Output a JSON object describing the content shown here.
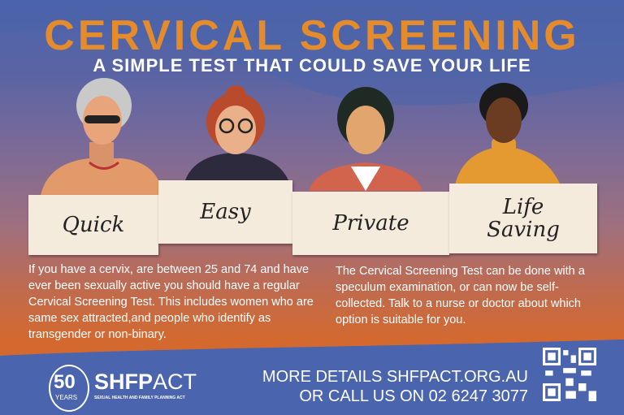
{
  "title": "CERVICAL SCREENING",
  "subtitle": "A SIMPLE TEST THAT COULD SAVE YOUR LIFE",
  "signs": [
    {
      "label": "Quick"
    },
    {
      "label": "Easy"
    },
    {
      "label": "Private"
    },
    {
      "label": "Life Saving"
    }
  ],
  "body_left": "If you have a cervix, are between 25 and 74 and have ever been sexually active you should have a regular Cervical Screening Test. This includes women who are same sex attracted,and people who identify as transgender or non-binary.",
  "body_right": "The Cervical Screening Test can be done with a speculum examination, or can now be self-collected. Talk to a nurse or doctor about which option is suitable for you.",
  "footer": {
    "logo": {
      "years": "50",
      "years_label": "YEARS",
      "name_bold": "SHFP",
      "name_light": "ACT",
      "tagline": "SEXUAL HEALTH AND FAMILY PLANNING ACT"
    },
    "contact_line1": "MORE DETAILS SHFPACT.ORG.AU",
    "contact_line2": "OR CALL US ON 02 6247 3077",
    "qr_icon": "qr-code-icon"
  },
  "colors": {
    "title": "#e48b2b",
    "footer": "#4a64ad",
    "orange": "#d4692f"
  }
}
